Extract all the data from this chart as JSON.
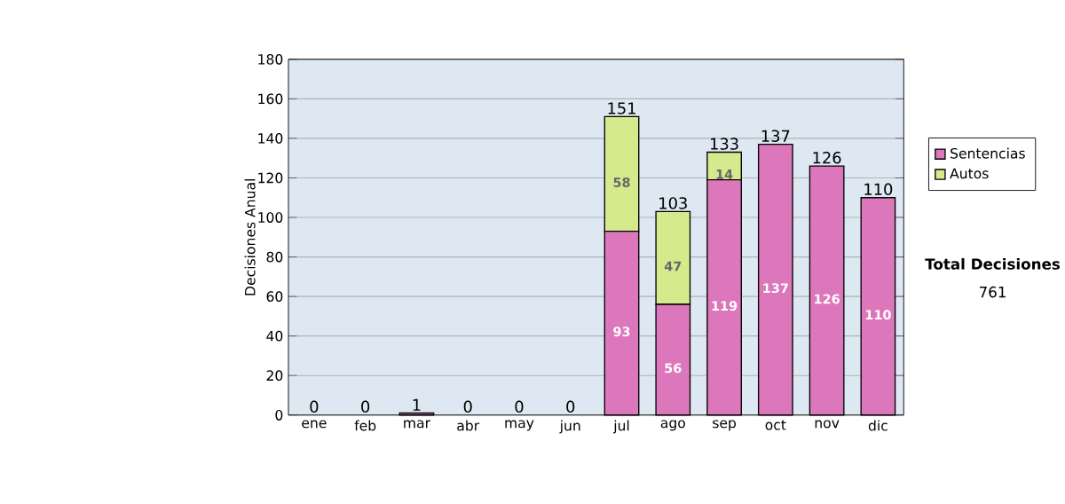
{
  "chart_data": {
    "type": "bar",
    "stacked": true,
    "ylabel": "Decisiones Anual",
    "categories": [
      "ene",
      "feb",
      "mar",
      "abr",
      "may",
      "jun",
      "jul",
      "ago",
      "sep",
      "oct",
      "nov",
      "dic"
    ],
    "series": [
      {
        "name": "Sentencias",
        "color": "#dd77bb",
        "values": [
          0,
          0,
          1,
          0,
          0,
          0,
          93,
          56,
          119,
          137,
          126,
          110
        ],
        "value_labels": [
          null,
          null,
          null,
          null,
          null,
          null,
          "93",
          "56",
          "119",
          "137",
          "126",
          "110"
        ]
      },
      {
        "name": "Autos",
        "color": "#d4ea8c",
        "values": [
          0,
          0,
          0,
          0,
          0,
          0,
          58,
          47,
          14,
          0,
          0,
          0
        ],
        "value_labels": [
          null,
          null,
          null,
          null,
          null,
          null,
          "58",
          "47",
          "14",
          null,
          null,
          null
        ]
      }
    ],
    "totals": [
      "0",
      "0",
      "1",
      "0",
      "0",
      "0",
      "151",
      "103",
      "133",
      "137",
      "126",
      "110"
    ],
    "ylim": [
      0,
      180
    ],
    "yticks": [
      0,
      20,
      40,
      60,
      80,
      100,
      120,
      140,
      160,
      180
    ],
    "grid": "y",
    "legend": "right",
    "annotations": [
      "**Total Decisiones**",
      "761"
    ]
  }
}
